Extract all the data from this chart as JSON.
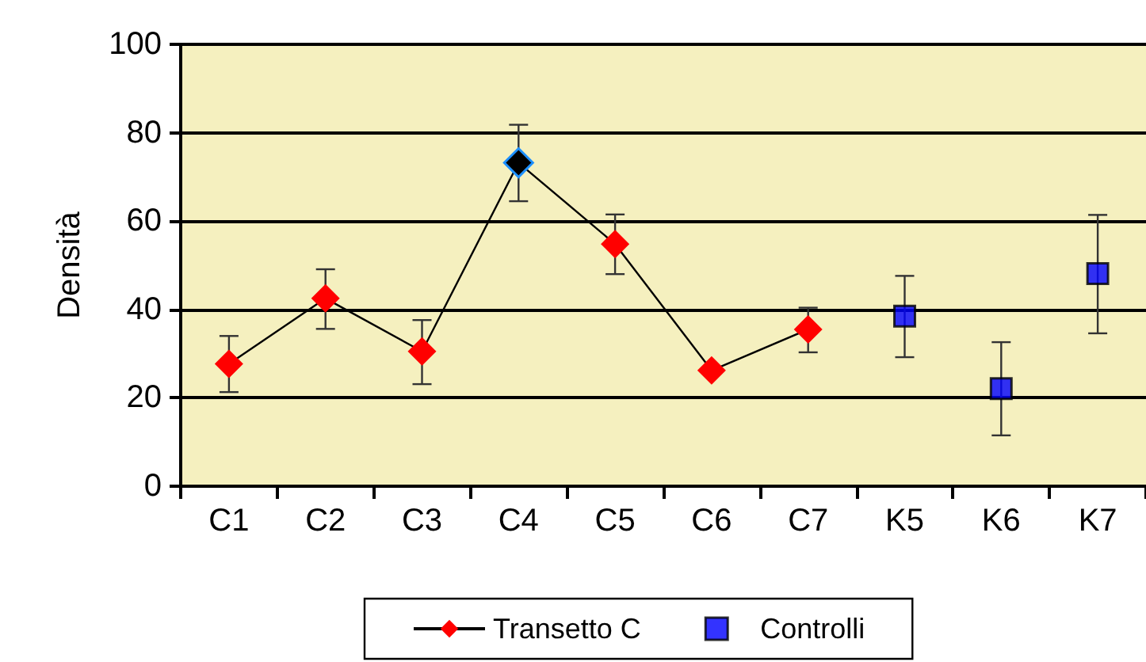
{
  "chart_data": {
    "type": "line",
    "ylabel": "Densità",
    "categories": [
      "C1",
      "C2",
      "C3",
      "C4",
      "C5",
      "C6",
      "C7",
      "K5",
      "K6",
      "K7"
    ],
    "series": [
      {
        "name": "Transetto C",
        "color": "#ff0000",
        "marker": "diamond",
        "colors": [
          "#ff0000",
          "#ff0000",
          "#ff0000",
          "#000000",
          "#ff0000",
          "#ff0000",
          "#ff0000",
          null,
          null,
          null
        ],
        "values": [
          27.7,
          42.5,
          30.5,
          73.2,
          54.8,
          26.2,
          35.5,
          null,
          null,
          null
        ],
        "errors": [
          [
            21.3,
            34.0
          ],
          [
            35.6,
            49.1
          ],
          [
            23.1,
            37.6
          ],
          [
            64.5,
            81.8
          ],
          [
            48.0,
            61.5
          ],
          null,
          [
            30.3,
            40.4
          ],
          null,
          null,
          null
        ]
      },
      {
        "name": "Controlli",
        "type": "scatter",
        "color": "#0000ff",
        "marker": "square",
        "values": [
          null,
          null,
          null,
          null,
          null,
          null,
          null,
          38.5,
          22.1,
          48.1
        ],
        "errors": [
          null,
          null,
          null,
          null,
          null,
          null,
          null,
          [
            29.2,
            47.6
          ],
          [
            11.5,
            32.6
          ],
          [
            34.6,
            61.4
          ]
        ]
      }
    ],
    "ylim": [
      0,
      100
    ],
    "yticks": [
      0,
      20,
      40,
      60,
      80,
      100
    ],
    "grid": "y",
    "legend": "bottom"
  }
}
